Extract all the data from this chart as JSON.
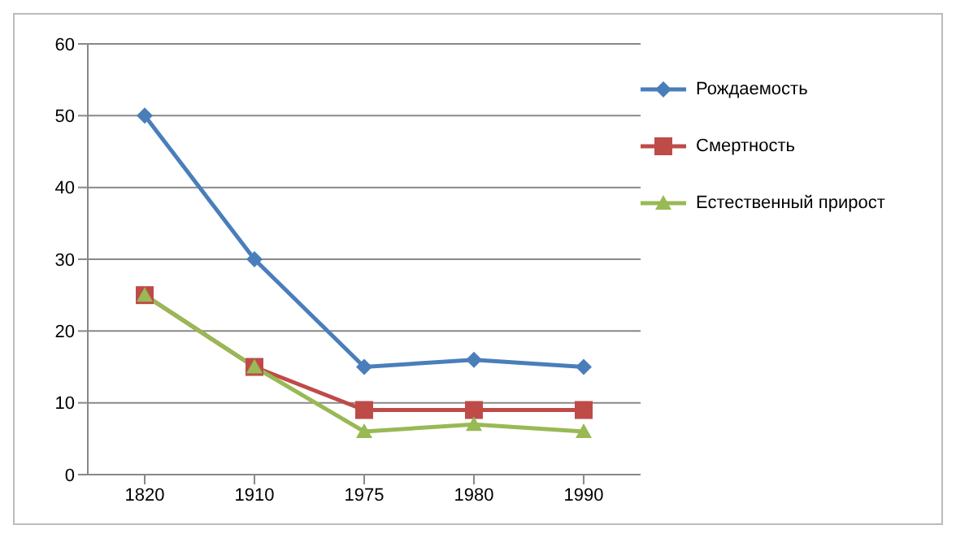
{
  "chart_data": {
    "type": "line",
    "categories": [
      "1820",
      "1910",
      "1975",
      "1980",
      "1990"
    ],
    "series": [
      {
        "name": "Рождаемость",
        "color": "#4a7ebb",
        "values": [
          50,
          30,
          15,
          16,
          15
        ],
        "marker": "diamond"
      },
      {
        "name": "Смертность",
        "color": "#be4b48",
        "values": [
          25,
          15,
          9,
          9,
          9
        ],
        "marker": "square"
      },
      {
        "name": "Естественный прирост",
        "color": "#98b954",
        "values": [
          25,
          15,
          6,
          7,
          6
        ],
        "marker": "triangle"
      }
    ],
    "ylim": [
      0,
      60
    ],
    "yticks": [
      0,
      10,
      20,
      30,
      40,
      50,
      60
    ],
    "grid": "y",
    "legend": "right"
  }
}
